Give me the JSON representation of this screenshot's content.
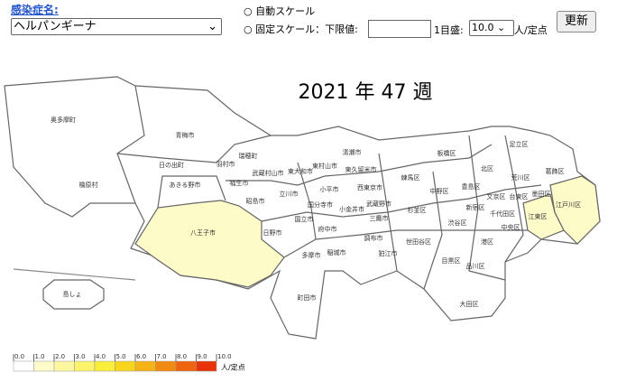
{
  "controls": {
    "disease_label": "感染症名:",
    "disease_select": "ヘルパンギーナ",
    "auto_scale": "自動スケール",
    "fixed_scale": "固定スケール：下限値:",
    "step_label": "1目盛:",
    "step_value": "10.0",
    "unit": "人/定点",
    "update_button": "更新"
  },
  "map": {
    "title": "2021 年 47 週",
    "regions": [
      {
        "name": "奥多摩町"
      },
      {
        "name": "青梅市"
      },
      {
        "name": "日の出町"
      },
      {
        "name": "羽村市"
      },
      {
        "name": "瑞穂町"
      },
      {
        "name": "武蔵村山市"
      },
      {
        "name": "東大和市"
      },
      {
        "name": "東村山市"
      },
      {
        "name": "清瀬市"
      },
      {
        "name": "東久留米市"
      },
      {
        "name": "檜原村"
      },
      {
        "name": "あきる野市"
      },
      {
        "name": "福生市"
      },
      {
        "name": "昭島市"
      },
      {
        "name": "立川市"
      },
      {
        "name": "小平市"
      },
      {
        "name": "西東京市"
      },
      {
        "name": "練馬区"
      },
      {
        "name": "板橋区"
      },
      {
        "name": "北区"
      },
      {
        "name": "足立区"
      },
      {
        "name": "葛飾区"
      },
      {
        "name": "荒川区"
      },
      {
        "name": "豊島区"
      },
      {
        "name": "中野区"
      },
      {
        "name": "文京区"
      },
      {
        "name": "台東区"
      },
      {
        "name": "墨田区"
      },
      {
        "name": "国分寺市"
      },
      {
        "name": "小金井市"
      },
      {
        "name": "武蔵野市"
      },
      {
        "name": "杉並区"
      },
      {
        "name": "新宿区"
      },
      {
        "name": "千代田区"
      },
      {
        "name": "江東区",
        "fill": "#fdfbc8"
      },
      {
        "name": "江戸川区",
        "fill": "#fdfbc8"
      },
      {
        "name": "国立市"
      },
      {
        "name": "三鷹市"
      },
      {
        "name": "渋谷区"
      },
      {
        "name": "中央区"
      },
      {
        "name": "八王子市",
        "fill": "#fdfbc8"
      },
      {
        "name": "日野市"
      },
      {
        "name": "府中市"
      },
      {
        "name": "調布市"
      },
      {
        "name": "世田谷区"
      },
      {
        "name": "港区"
      },
      {
        "name": "狛江市"
      },
      {
        "name": "多摩市"
      },
      {
        "name": "稲城市"
      },
      {
        "name": "目黒区"
      },
      {
        "name": "品川区"
      },
      {
        "name": "大田区"
      },
      {
        "name": "町田市"
      },
      {
        "name": "島しょ"
      }
    ]
  },
  "legend": {
    "ticks": [
      "0.0",
      "1.0",
      "2.0",
      "3.0",
      "4.0",
      "5.0",
      "6.0",
      "7.0",
      "8.0",
      "9.0",
      "10.0"
    ],
    "colors": [
      "#ffffff",
      "#fdfbc8",
      "#fcf7a0",
      "#fbf46a",
      "#f9ee3a",
      "#f7d51c",
      "#f5b316",
      "#f28a12",
      "#ef620e",
      "#e8330a",
      "#e00000"
    ],
    "unit": "人/定点"
  }
}
